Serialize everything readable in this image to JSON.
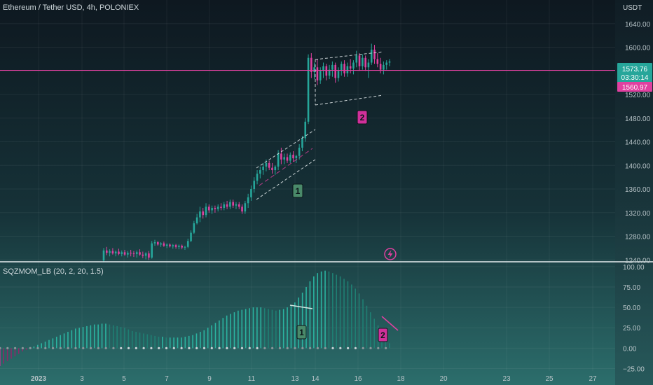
{
  "header": {
    "symbol_title": "Ethereum / Tether USD, 4h, POLONIEX",
    "currency": "USDT"
  },
  "price_tags": {
    "last_price": "1573.76",
    "countdown": "03:30:14",
    "line_price": "1560.97"
  },
  "colors": {
    "background_top": "#0f1a22",
    "background_bottom": "#2a6a6a",
    "up_candle": "#26a69a",
    "down_candle": "#e040a0",
    "hline": "#e040a0",
    "label_green_bg": "#4a8a6a",
    "label_pink_bg": "#d0309a",
    "axis_text": "#b8c4c8"
  },
  "annotations": {
    "label_1": "1",
    "label_2": "2",
    "lightning_icon": "lightning-icon"
  },
  "indicator": {
    "title": "SQZMOM_LB (20, 2, 20, 1.5)"
  },
  "chart_data": [
    {
      "type": "candlestick",
      "title": "Ethereum / Tether USD, 4h, POLONIEX",
      "ylabel": "USDT",
      "ylim": [
        1238,
        1680
      ],
      "horizontal_line": 1560.97,
      "y_ticks": [
        "1640.00",
        "1600.00",
        "1560.00",
        "1520.00",
        "1480.00",
        "1440.00",
        "1400.00",
        "1360.00",
        "1320.00",
        "1280.00",
        "1240.00"
      ],
      "x_ticks": [
        "2023",
        "3",
        "5",
        "7",
        "9",
        "11",
        "13",
        "14",
        "16",
        "18",
        "20",
        "23",
        "25",
        "27"
      ],
      "candles": [
        [
          1239,
          1260,
          1236,
          1256
        ],
        [
          1256,
          1262,
          1248,
          1252
        ],
        [
          1252,
          1258,
          1246,
          1255
        ],
        [
          1255,
          1260,
          1249,
          1251
        ],
        [
          1251,
          1256,
          1246,
          1254
        ],
        [
          1254,
          1259,
          1248,
          1250
        ],
        [
          1250,
          1256,
          1246,
          1253
        ],
        [
          1253,
          1257,
          1247,
          1249
        ],
        [
          1249,
          1255,
          1244,
          1252
        ],
        [
          1252,
          1257,
          1246,
          1251
        ],
        [
          1251,
          1255,
          1245,
          1250
        ],
        [
          1250,
          1256,
          1244,
          1253
        ],
        [
          1253,
          1258,
          1247,
          1249
        ],
        [
          1249,
          1254,
          1243,
          1247
        ],
        [
          1247,
          1253,
          1241,
          1251
        ],
        [
          1251,
          1255,
          1240,
          1244
        ],
        [
          1244,
          1272,
          1242,
          1268
        ],
        [
          1268,
          1274,
          1264,
          1270
        ],
        [
          1270,
          1272,
          1264,
          1266
        ],
        [
          1266,
          1270,
          1262,
          1268
        ],
        [
          1268,
          1271,
          1262,
          1264
        ],
        [
          1264,
          1268,
          1260,
          1266
        ],
        [
          1266,
          1268,
          1261,
          1263
        ],
        [
          1263,
          1267,
          1259,
          1265
        ],
        [
          1265,
          1267,
          1259,
          1262
        ],
        [
          1262,
          1266,
          1258,
          1264
        ],
        [
          1264,
          1266,
          1258,
          1261
        ],
        [
          1261,
          1264,
          1257,
          1262
        ],
        [
          1262,
          1276,
          1260,
          1272
        ],
        [
          1272,
          1290,
          1270,
          1286
        ],
        [
          1286,
          1306,
          1284,
          1302
        ],
        [
          1302,
          1318,
          1300,
          1312
        ],
        [
          1312,
          1330,
          1304,
          1322
        ],
        [
          1322,
          1328,
          1310,
          1316
        ],
        [
          1316,
          1336,
          1312,
          1330
        ],
        [
          1330,
          1334,
          1320,
          1324
        ],
        [
          1324,
          1332,
          1318,
          1328
        ],
        [
          1328,
          1332,
          1320,
          1326
        ],
        [
          1326,
          1334,
          1322,
          1330
        ],
        [
          1330,
          1336,
          1324,
          1328
        ],
        [
          1328,
          1338,
          1324,
          1334
        ],
        [
          1334,
          1340,
          1326,
          1330
        ],
        [
          1330,
          1342,
          1326,
          1338
        ],
        [
          1338,
          1342,
          1328,
          1332
        ],
        [
          1332,
          1338,
          1326,
          1334
        ],
        [
          1334,
          1338,
          1326,
          1330
        ],
        [
          1330,
          1334,
          1318,
          1322
        ],
        [
          1322,
          1340,
          1318,
          1336
        ],
        [
          1336,
          1352,
          1328,
          1346
        ],
        [
          1346,
          1366,
          1340,
          1360
        ],
        [
          1360,
          1380,
          1354,
          1374
        ],
        [
          1374,
          1392,
          1368,
          1386
        ],
        [
          1386,
          1398,
          1378,
          1392
        ],
        [
          1392,
          1404,
          1384,
          1398
        ],
        [
          1398,
          1410,
          1390,
          1404
        ],
        [
          1404,
          1408,
          1392,
          1396
        ],
        [
          1396,
          1404,
          1386,
          1392
        ],
        [
          1392,
          1400,
          1384,
          1398
        ],
        [
          1398,
          1426,
          1392,
          1420
        ],
        [
          1420,
          1430,
          1402,
          1410
        ],
        [
          1410,
          1420,
          1402,
          1414
        ],
        [
          1414,
          1420,
          1404,
          1408
        ],
        [
          1408,
          1422,
          1404,
          1418
        ],
        [
          1418,
          1424,
          1406,
          1412
        ],
        [
          1412,
          1418,
          1404,
          1416
        ],
        [
          1416,
          1436,
          1410,
          1430
        ],
        [
          1430,
          1450,
          1424,
          1446
        ],
        [
          1446,
          1480,
          1440,
          1474
        ],
        [
          1474,
          1588,
          1470,
          1582
        ],
        [
          1582,
          1590,
          1548,
          1558
        ],
        [
          1558,
          1574,
          1546,
          1566
        ],
        [
          1566,
          1580,
          1536,
          1544
        ],
        [
          1544,
          1566,
          1538,
          1560
        ],
        [
          1560,
          1574,
          1548,
          1568
        ],
        [
          1568,
          1572,
          1544,
          1552
        ],
        [
          1552,
          1570,
          1546,
          1562
        ],
        [
          1562,
          1576,
          1550,
          1570
        ],
        [
          1570,
          1574,
          1540,
          1548
        ],
        [
          1548,
          1566,
          1542,
          1560
        ],
        [
          1560,
          1576,
          1552,
          1572
        ],
        [
          1572,
          1578,
          1550,
          1556
        ],
        [
          1556,
          1574,
          1550,
          1568
        ],
        [
          1568,
          1580,
          1556,
          1564
        ],
        [
          1564,
          1578,
          1554,
          1574
        ],
        [
          1574,
          1594,
          1566,
          1586
        ],
        [
          1586,
          1590,
          1560,
          1568
        ],
        [
          1568,
          1588,
          1562,
          1582
        ],
        [
          1582,
          1586,
          1560,
          1566
        ],
        [
          1566,
          1580,
          1548,
          1574
        ],
        [
          1574,
          1606,
          1570,
          1596
        ],
        [
          1596,
          1604,
          1572,
          1580
        ],
        [
          1580,
          1590,
          1566,
          1572
        ],
        [
          1572,
          1582,
          1556,
          1562
        ],
        [
          1562,
          1576,
          1554,
          1570
        ],
        [
          1570,
          1578,
          1562,
          1574
        ],
        [
          1574,
          1580,
          1568,
          1576
        ]
      ]
    },
    {
      "type": "bar",
      "title": "SQZMOM_LB (20, 2, 20, 1.5)",
      "ylim": [
        -28,
        105
      ],
      "y_ticks": [
        "100.00",
        "75.00",
        "50.00",
        "25.00",
        "0.00",
        "−25.00"
      ],
      "values": [
        -22,
        -19,
        -16,
        -13,
        -10,
        -7,
        -4,
        -2,
        0,
        2,
        4,
        6,
        8,
        10,
        12,
        14,
        16,
        18,
        20,
        22,
        24,
        25,
        26,
        27,
        28,
        29,
        29,
        30,
        30,
        29,
        28,
        27,
        26,
        25,
        23,
        21,
        20,
        19,
        18,
        17,
        16,
        15,
        14,
        14,
        13,
        13,
        13,
        13,
        13,
        14,
        15,
        16,
        18,
        20,
        22,
        25,
        28,
        31,
        34,
        37,
        40,
        42,
        44,
        46,
        47,
        48,
        49,
        50,
        50,
        50,
        49,
        48,
        47,
        46,
        47,
        48,
        50,
        52,
        56,
        62,
        68,
        75,
        82,
        88,
        92,
        94,
        95,
        94,
        92,
        90,
        88,
        85,
        82,
        78,
        73,
        67,
        60,
        52,
        44,
        36,
        28,
        20,
        12,
        6
      ]
    }
  ]
}
